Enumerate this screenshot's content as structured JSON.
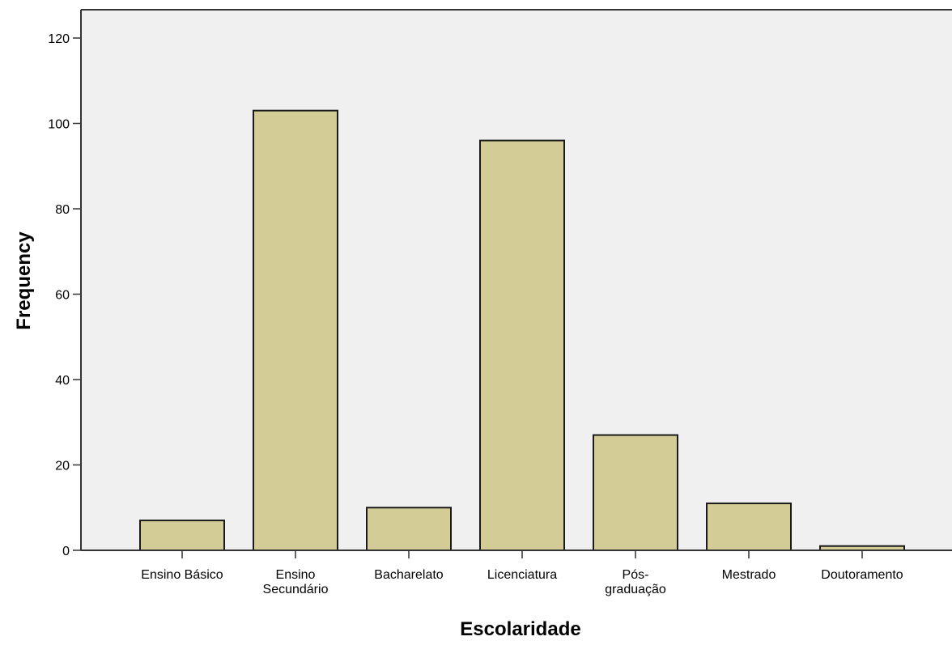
{
  "chart_data": {
    "type": "bar",
    "title": "",
    "xlabel": "Escolaridade",
    "ylabel": "Frequency",
    "categories": [
      [
        "Ensino Básico"
      ],
      [
        "Ensino",
        "Secundário"
      ],
      [
        "Bacharelato"
      ],
      [
        "Licenciatura"
      ],
      [
        "Pós-",
        "graduação"
      ],
      [
        "Mestrado"
      ],
      [
        "Doutoramento"
      ]
    ],
    "values": [
      7,
      103,
      10,
      96,
      27,
      11,
      1
    ],
    "ylim": [
      0,
      120
    ],
    "yticks": [
      0,
      20,
      40,
      60,
      80,
      100,
      120
    ],
    "grid": false,
    "legend": "none",
    "colors": {
      "bar_fill": "#d3cc97",
      "bar_stroke": "#1a1a1a",
      "plot_background": "#f0f0f0",
      "axis": "#333333"
    }
  }
}
